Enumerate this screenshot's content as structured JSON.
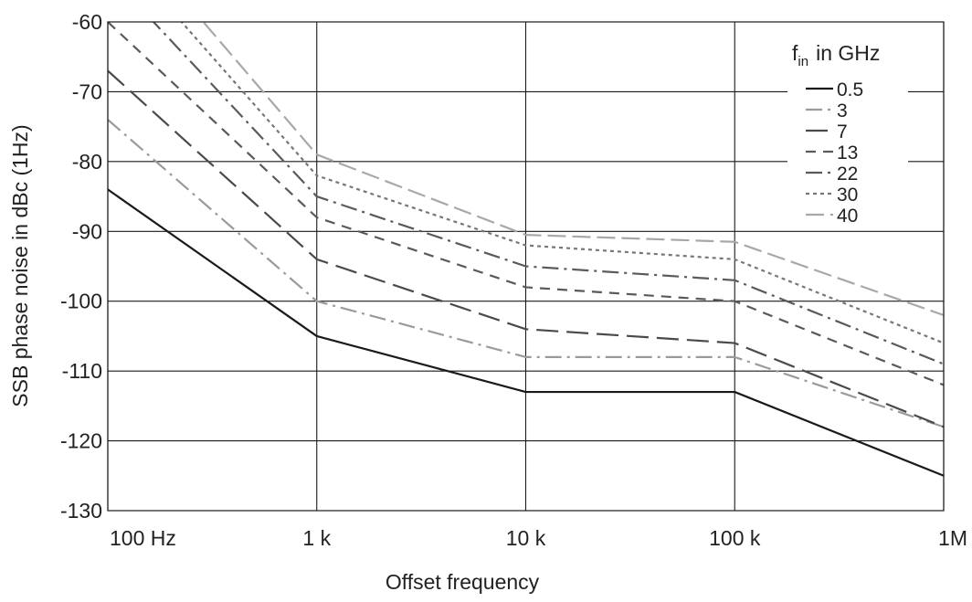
{
  "chart_data": {
    "type": "line",
    "title": "",
    "xlabel": "Offset frequency",
    "ylabel": "SSB phase noise in dBc (1Hz)",
    "x_scale": "log",
    "x": [
      100,
      1000,
      10000,
      100000,
      1000000
    ],
    "x_tick_labels": [
      "100 Hz",
      "1 k",
      "10 k",
      "100 k",
      "1M"
    ],
    "ylim": [
      -130,
      -60
    ],
    "y_ticks": [
      -60,
      -70,
      -80,
      -90,
      -100,
      -110,
      -120,
      -130
    ],
    "y_tick_labels": [
      "-60",
      "-70",
      "-80",
      "-90",
      "-100",
      "-110",
      "-120",
      "-130"
    ],
    "grid": true,
    "legend": {
      "title_main": "f",
      "title_sub": "in",
      "title_rest": "in GHz",
      "placement": "top-right"
    },
    "series": [
      {
        "name": "0.5",
        "values": [
          -84,
          -105,
          -113,
          -113,
          -125
        ],
        "color": "#1a1a1a",
        "dash": "solid"
      },
      {
        "name": "3",
        "values": [
          -74,
          -100,
          -108,
          -108,
          -118
        ],
        "color": "#9a9a9a",
        "dash": "dashdot"
      },
      {
        "name": "7",
        "values": [
          -67,
          -94,
          -104,
          -106,
          -118
        ],
        "color": "#4a4a4a",
        "dash": "longdash"
      },
      {
        "name": "13",
        "values": [
          -60,
          -88,
          -98,
          -100,
          -112
        ],
        "color": "#5a5a5a",
        "dash": "dash"
      },
      {
        "name": "22",
        "values": [
          -53,
          -85,
          -95,
          -97,
          -109
        ],
        "color": "#5a5a5a",
        "dash": "dashdot"
      },
      {
        "name": "30",
        "values": [
          -48,
          -82,
          -92,
          -94,
          -106
        ],
        "color": "#777777",
        "dash": "dot"
      },
      {
        "name": "40",
        "values": [
          -44,
          -79,
          -90.5,
          -91.5,
          -102
        ],
        "color": "#a8a8a8",
        "dash": "widedash"
      }
    ]
  }
}
